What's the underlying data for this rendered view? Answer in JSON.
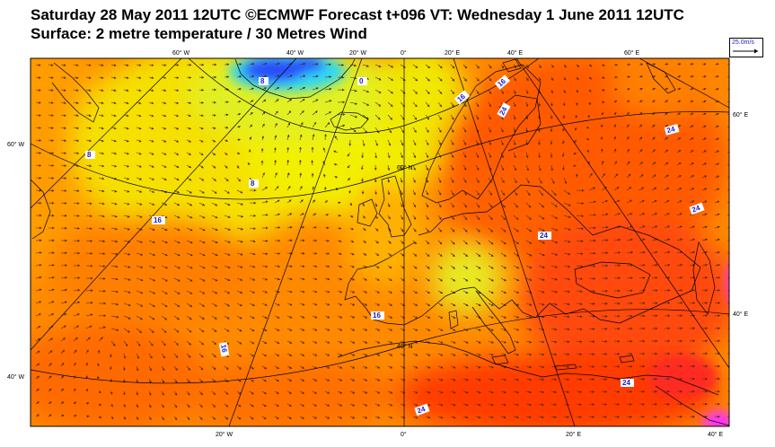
{
  "title": {
    "line1": "Saturday 28 May 2011 12UTC ©ECMWF Forecast t+096 VT: Wednesday 1 June 2011 12UTC",
    "line2": "Surface: 2 metre temperature / 30 Metres Wind"
  },
  "scale": {
    "label": "25.0m/s"
  },
  "axis_labels": {
    "top": [
      "60° W",
      "40° W",
      "20° W",
      "0°",
      "20° E",
      "40° E",
      "60° E"
    ],
    "bottom": [
      "20° W",
      "0°",
      "20° E",
      "40° E"
    ],
    "left": [
      "60° W",
      "40° W"
    ],
    "right": [
      "60° E",
      "40° E"
    ],
    "interior": [
      "60° N",
      "40° N"
    ]
  },
  "contour_labels": [
    "0",
    "8",
    "8",
    "8",
    "16",
    "16",
    "16",
    "16",
    "16",
    "24",
    "24",
    "24",
    "24",
    "24",
    "24"
  ],
  "colors": {
    "cold": "#2a4cff",
    "cool": "#30d8f0",
    "mild": "#d8f020",
    "yellow": "#f5e800",
    "orange": "#ff9a00",
    "deep_orange": "#ff6a00",
    "hot": "#ff3a00",
    "magenta": "#ff30ff",
    "land_outline": "#000000",
    "wind_arrow": "#4a2a10",
    "contour_label": "#1a1ad0"
  }
}
